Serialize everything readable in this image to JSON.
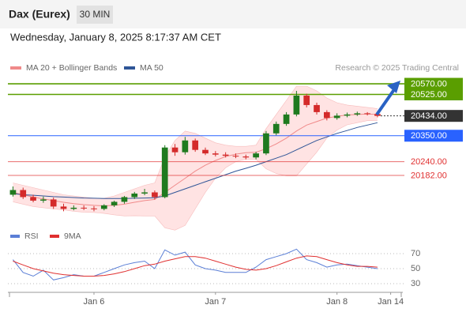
{
  "chart_data": {
    "type": "candlestick",
    "title": "Dax (Eurex)",
    "timeframe": "30 MIN",
    "subtitle": "Wednesday, January 8, 2025 8:17:37 AM CET",
    "source": "Research © 2025 Trading Central",
    "up_color": "#1f7a1f",
    "down_color": "#d42a2a",
    "x": [
      0,
      1,
      2,
      3,
      4,
      5,
      6,
      7,
      8,
      9,
      10,
      11,
      12,
      13,
      14,
      15,
      16,
      17,
      18,
      19,
      20,
      21,
      22,
      23,
      24,
      25,
      26,
      27,
      28,
      29,
      30,
      31,
      32,
      33,
      34,
      35,
      36
    ],
    "xlim": [
      -0.5,
      38.5
    ],
    "xticks": [
      {
        "value": 8,
        "label": "Jan 6"
      },
      {
        "value": 20,
        "label": "Jan 7"
      },
      {
        "value": 32,
        "label": "Jan 8"
      },
      {
        "value": 37.3,
        "label": "Jan 14"
      }
    ],
    "ylim": [
      19971,
      20607
    ],
    "open": [
      20100,
      20120,
      20090,
      20075,
      20080,
      20050,
      20040,
      20045,
      20042,
      20040,
      20055,
      20070,
      20090,
      20105,
      20110,
      20090,
      20300,
      20280,
      20330,
      20290,
      20275,
      20270,
      20265,
      20262,
      20258,
      20275,
      20360,
      20400,
      20440,
      20520,
      20480,
      20450,
      20425,
      20435,
      20440,
      20445,
      20442
    ],
    "high": [
      20135,
      20130,
      20100,
      20092,
      20088,
      20062,
      20055,
      20055,
      20052,
      20060,
      20075,
      20095,
      20112,
      20125,
      20118,
      20310,
      20315,
      20345,
      20338,
      20300,
      20285,
      20280,
      20275,
      20270,
      20282,
      20370,
      20410,
      20450,
      20540,
      20528,
      20490,
      20458,
      20445,
      20448,
      20452,
      20450,
      20448
    ],
    "low": [
      20092,
      20082,
      20068,
      20066,
      20040,
      20030,
      20034,
      20035,
      20030,
      20034,
      20048,
      20062,
      20082,
      20098,
      20080,
      20085,
      20265,
      20270,
      20282,
      20268,
      20262,
      20258,
      20255,
      20250,
      20250,
      20268,
      20352,
      20392,
      20432,
      20470,
      20440,
      20415,
      20418,
      20428,
      20434,
      20436,
      20428
    ],
    "close": [
      20120,
      20090,
      20075,
      20080,
      20050,
      20040,
      20045,
      20042,
      20040,
      20055,
      20070,
      20090,
      20105,
      20110,
      20090,
      20300,
      20280,
      20330,
      20290,
      20275,
      20270,
      20265,
      20262,
      20258,
      20275,
      20360,
      20400,
      20440,
      20520,
      20480,
      20450,
      20425,
      20435,
      20440,
      20445,
      20442,
      20434
    ],
    "overlays": [
      {
        "name": "MA 20 + Bollinger Bands",
        "color": "#f08a8a",
        "band_color": "#ffcccc",
        "values": [
          20110,
          20100,
          20090,
          20082,
          20075,
          20068,
          20062,
          20058,
          20055,
          20053,
          20055,
          20060,
          20068,
          20075,
          20080,
          20110,
          20140,
          20170,
          20200,
          20225,
          20245,
          20262,
          20272,
          20278,
          20280,
          20295,
          20315,
          20340,
          20370,
          20395,
          20410,
          20425,
          20432,
          20438,
          20440,
          20442,
          20440
        ],
        "upper": [
          20150,
          20140,
          20130,
          20120,
          20110,
          20100,
          20095,
          20090,
          20085,
          20085,
          20095,
          20110,
          20125,
          20140,
          20150,
          20260,
          20330,
          20370,
          20360,
          20340,
          20320,
          20310,
          20305,
          20305,
          20310,
          20380,
          20440,
          20500,
          20560,
          20560,
          20540,
          20510,
          20490,
          20480,
          20475,
          20470,
          20465
        ],
        "lower": [
          20070,
          20060,
          20050,
          20045,
          20040,
          20036,
          20030,
          20026,
          20025,
          20021,
          20015,
          20010,
          20011,
          20010,
          20010,
          19960,
          19950,
          19970,
          20040,
          20110,
          20170,
          20214,
          20240,
          20251,
          20250,
          20210,
          20190,
          20180,
          20180,
          20230,
          20280,
          20340,
          20374,
          20396,
          20405,
          20414,
          20415
        ]
      },
      {
        "name": "MA 50",
        "color": "#2f5597",
        "values": [
          20105,
          20100,
          20098,
          20095,
          20092,
          20090,
          20088,
          20086,
          20085,
          20084,
          20084,
          20084,
          20085,
          20086,
          20087,
          20095,
          20110,
          20125,
          20140,
          20155,
          20170,
          20185,
          20200,
          20212,
          20225,
          20240,
          20255,
          20270,
          20290,
          20310,
          20330,
          20345,
          20360,
          20372,
          20385,
          20395,
          20405
        ]
      }
    ],
    "levels": [
      {
        "value": 20570,
        "label": "20570.00",
        "color": "#5a9e00",
        "style": "box"
      },
      {
        "value": 20525,
        "label": "20525.00",
        "color": "#5a9e00",
        "style": "box"
      },
      {
        "value": 20434,
        "label": "20434.00",
        "color": "#333333",
        "style": "last"
      },
      {
        "value": 20350,
        "label": "20350.00",
        "color": "#2962ff",
        "style": "box"
      },
      {
        "value": 20240,
        "label": "20240.00",
        "color": "#e03030",
        "style": "text"
      },
      {
        "value": 20182,
        "label": "20182.00",
        "color": "#e03030",
        "style": "text"
      }
    ],
    "rsi": {
      "ylim": [
        20,
        80
      ],
      "yticks": [
        30,
        50,
        70
      ],
      "series": [
        {
          "name": "RSI",
          "color": "#5b7fd6",
          "values": [
            62,
            45,
            40,
            48,
            35,
            38,
            42,
            40,
            40,
            45,
            50,
            55,
            58,
            60,
            50,
            75,
            68,
            72,
            55,
            50,
            48,
            45,
            45,
            45,
            52,
            62,
            66,
            70,
            76,
            62,
            58,
            52,
            55,
            56,
            54,
            52,
            50
          ]
        },
        {
          "name": "9MA",
          "color": "#e03030",
          "values": [
            60,
            55,
            50,
            47,
            44,
            42,
            41,
            40,
            40,
            41,
            43,
            46,
            50,
            54,
            56,
            60,
            63,
            66,
            66,
            64,
            60,
            56,
            52,
            49,
            48,
            50,
            54,
            59,
            64,
            67,
            66,
            62,
            58,
            55,
            53,
            53,
            52
          ]
        }
      ]
    }
  }
}
